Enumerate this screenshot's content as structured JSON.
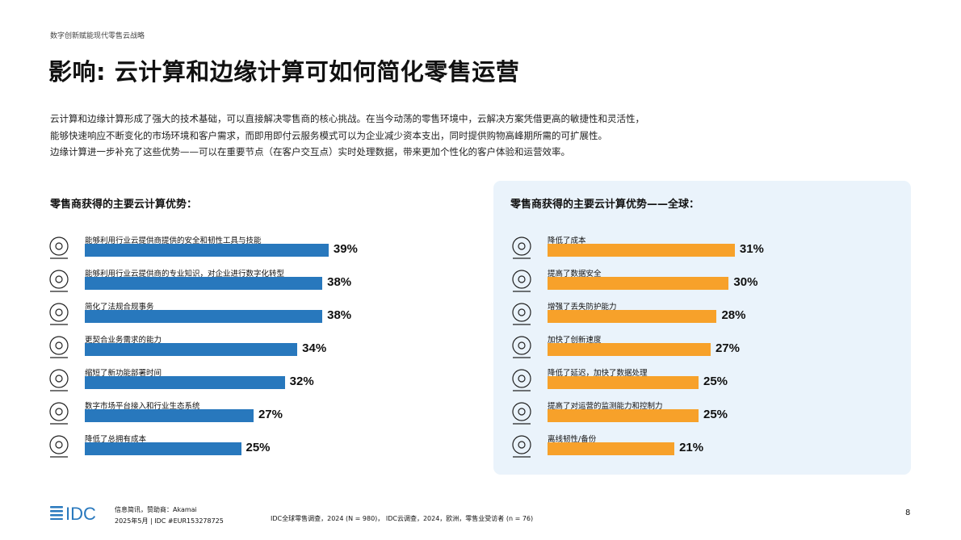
{
  "running_header": "数字创新赋能现代零售云战略",
  "title": "影响: 云计算和边缘计算可如何简化零售运营",
  "intro": [
    "云计算和边缘计算形成了强大的技术基础，可以直接解决零售商的核心挑战。在当今动荡的零售环境中，云解决方案凭借更高的敏捷性和灵活性，",
    "能够快速响应不断变化的市场环境和客户需求，而即用即付云服务模式可以为企业减少资本支出，同时提供购物高峰期所需的可扩展性。",
    "边缘计算进一步补充了这些优势——可以在重要节点（在客户交互点）实时处理数据，带来更加个性化的客户体验和运营效率。"
  ],
  "chart_data": [
    {
      "type": "bar",
      "orientation": "horizontal",
      "title": "零售商获得的主要云计算优势：",
      "color": "#2878bd",
      "categories": [
        "能够利用行业云提供商提供的安全和韧性工具与技能",
        "能够利用行业云提供商的专业知识，对企业进行数字化转型",
        "简化了法规合规事务",
        "更契合业务需求的能力",
        "缩短了新功能部署时间",
        "数字市场平台接入和行业生态系统",
        "降低了总拥有成本"
      ],
      "values": [
        39,
        38,
        38,
        34,
        32,
        27,
        25
      ],
      "labels": [
        "39%",
        "38%",
        "38%",
        "34%",
        "32%",
        "27%",
        "25%"
      ],
      "icons": [
        "person-gear-icon",
        "cloud-network-icon",
        "bank-network-icon",
        "gear-handshake-icon",
        "person-arrows-icon",
        "leaf-cycle-icon",
        "person-dollar-icon"
      ]
    },
    {
      "type": "bar",
      "orientation": "horizontal",
      "title": "零售商获得的主要云计算优势——全球：",
      "color": "#f7a12a",
      "categories": [
        "降低了成本",
        "提高了数据安全",
        "增强了丢失防护能力",
        "加快了创新速度",
        "降低了延迟，加快了数据处理",
        "提高了对运营的监测能力和控制力",
        "离线韧性/备份"
      ],
      "values": [
        31,
        30,
        28,
        27,
        25,
        25,
        21
      ],
      "labels": [
        "31%",
        "30%",
        "28%",
        "27%",
        "25%",
        "25%",
        "21%"
      ],
      "icons": [
        "dollar-down-icon",
        "shield-lock-icon",
        "hand-arrows-icon",
        "gear-network-icon",
        "checklist-clock-icon",
        "eye-network-icon",
        "cloud-server-icon"
      ]
    }
  ],
  "footer": {
    "logo": "IDC",
    "line1": "信息简讯，赞助商：Akamai",
    "line2": "2025年5月 | IDC #EUR153278725",
    "source": "IDC全球零售调查，2024 (N = 980)， IDC云调查，2024，欧洲，零售业受访者 (n = 76)",
    "page": "8"
  },
  "colors": {
    "left_bar": "#2878bd",
    "right_bar": "#f7a12a",
    "right_panel_bg": "#eaf3fb",
    "logo": "#2878bd"
  }
}
